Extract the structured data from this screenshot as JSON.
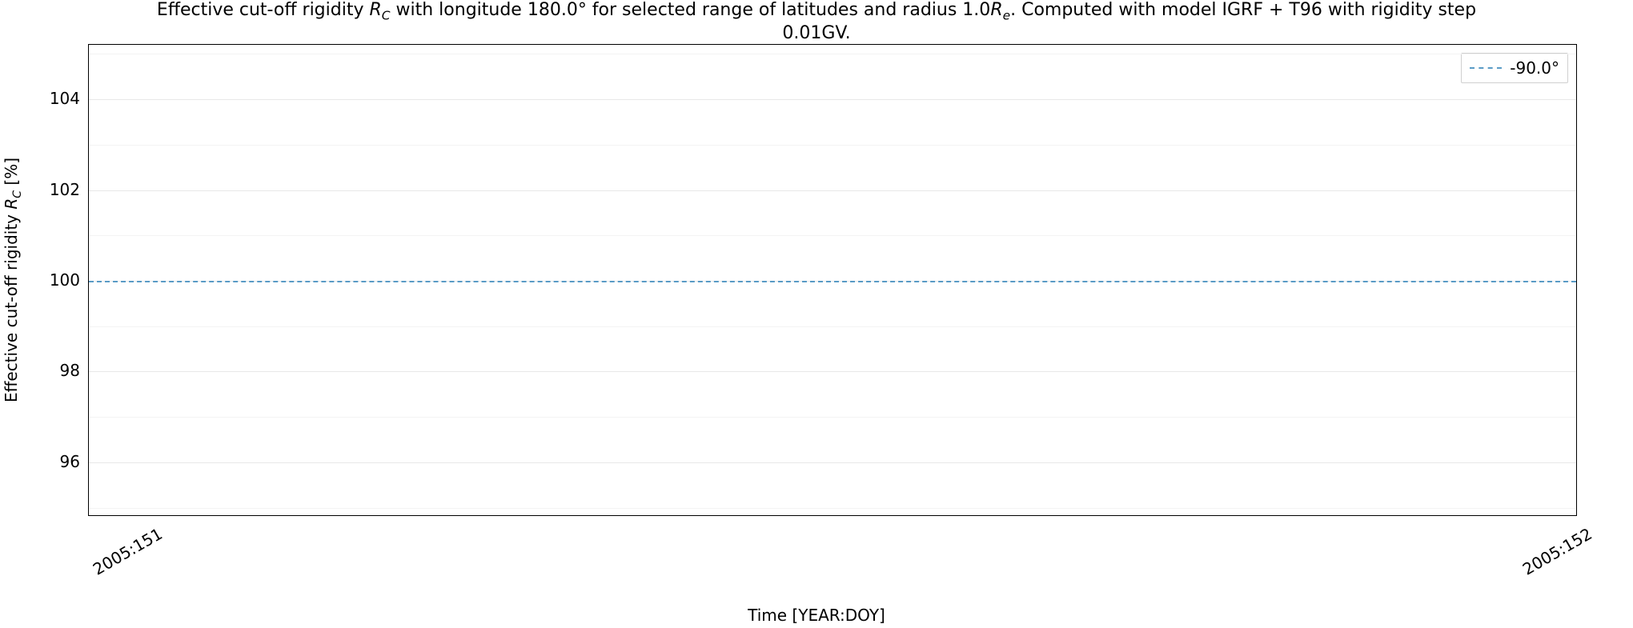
{
  "chart": {
    "type": "line",
    "title_line1_pre": "Effective cut-off rigidity ",
    "title_line1_sym": "R",
    "title_line1_sub": "C",
    "title_line1_rest": " with longitude 180.0° for selected range of latitudes and radius 1.0",
    "title_line1_sym2": "R",
    "title_line1_sub2": "e",
    "title_line1_end": ". Computed with model IGRF + T96 with rigidity step",
    "title_line2": "0.01GV.",
    "ylabel_pre": "Effective cut-off rigidity ",
    "ylabel_sym": "R",
    "ylabel_sub": "C",
    "ylabel_end": " [%]",
    "xlabel": "Time [YEAR:DOY]",
    "ylim": [
      94.8,
      105.2
    ],
    "yticks_major": [
      96,
      98,
      100,
      102,
      104
    ],
    "ytick_labels": [
      "96",
      "98",
      "100",
      "102",
      "104"
    ],
    "yticks_minor": [
      95,
      96,
      97,
      98,
      99,
      100,
      101,
      102,
      103,
      104,
      105
    ],
    "xlim": [
      0,
      1
    ],
    "xticks": [
      0.02,
      0.98
    ],
    "xtick_labels": [
      "2005:151",
      "2005:152"
    ],
    "series": [
      {
        "label": "-90.0°",
        "color": "#5a9bc6",
        "dash": "10px 6px",
        "line_width": 2,
        "y_value": 100
      }
    ],
    "background_color": "#ffffff",
    "grid_major_color": "#e8e8e8",
    "grid_minor_color": "#f3f3f3",
    "axis_border_color": "#000000",
    "title_fontsize": 22,
    "label_fontsize": 20,
    "tick_fontsize": 20,
    "legend_fontsize": 20
  }
}
